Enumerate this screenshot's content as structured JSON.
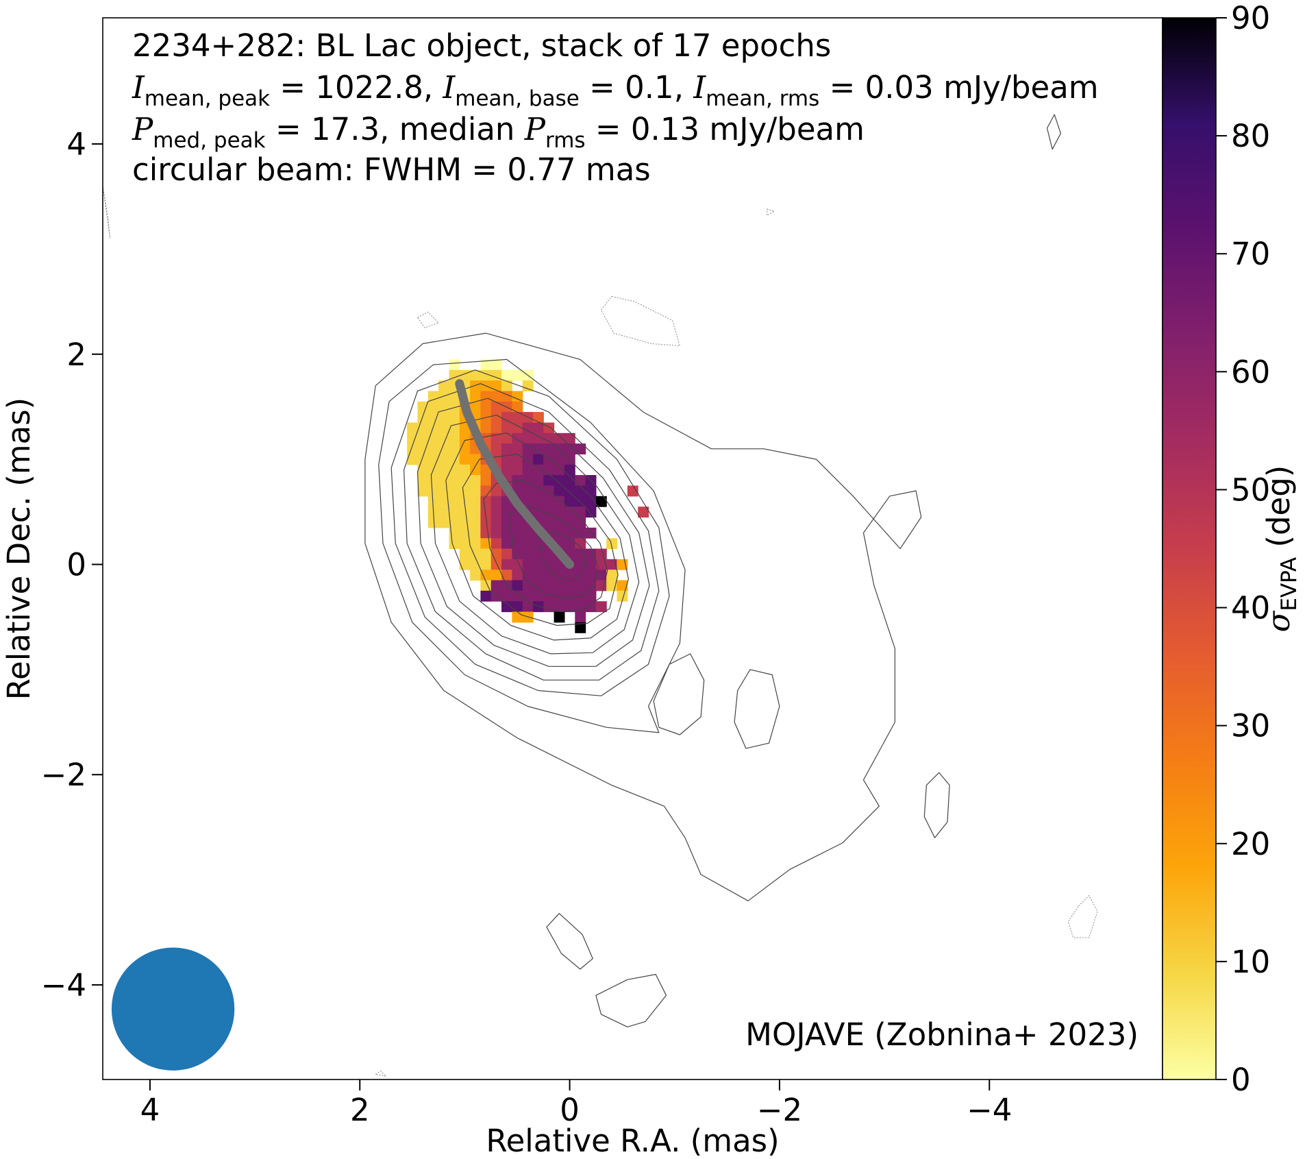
{
  "chart_data": {
    "type": "heatmap",
    "title_lines": {
      "line1": "2234+282: BL Lac object, stack of 17 epochs",
      "line2": {
        "sym_i": "I",
        "sub_peak": "mean, peak",
        "val_peak": " = 1022.8, ",
        "sub_base": "mean, base",
        "val_base": " = 0.1, ",
        "sub_rms": "mean, rms",
        "val_rms": " = 0.03 mJy/beam"
      },
      "line3": {
        "sym_p": "P",
        "sub_peak": "med, peak",
        "val_peak": " = 17.3, median ",
        "sub_rms": "rms",
        "val_rms": " = 0.13 mJy/beam"
      },
      "line4": "circular beam: FWHM = 0.77 mas"
    },
    "credit": "MOJAVE (Zobnina+ 2023)",
    "xlabel": "Relative R.A. (mas)",
    "ylabel": "Relative Dec. (mas)",
    "xlim": [
      4.45,
      -5.65
    ],
    "ylim": [
      -4.9,
      5.2
    ],
    "x_inverted": true,
    "xticks": [
      4,
      2,
      0,
      -2,
      -4
    ],
    "xtick_labels": [
      "4",
      "2",
      "0",
      "−2",
      "−4"
    ],
    "yticks": [
      4,
      2,
      0,
      -2,
      -4
    ],
    "ytick_labels": [
      "4",
      "2",
      "0",
      "−2",
      "−4"
    ],
    "colorbar": {
      "label_symbol": "σ",
      "label_sub": "EVPA",
      "label_unit": " (deg)",
      "range": [
        0,
        90
      ],
      "ticks": [
        0,
        10,
        20,
        30,
        40,
        50,
        60,
        70,
        80,
        90
      ],
      "colormap": "inferno_r",
      "colors": [
        "#fcffa4",
        "#f6d645",
        "#fca50a",
        "#f57d15",
        "#e55c30",
        "#c73e4c",
        "#a52c60",
        "#82206c",
        "#5c126e",
        "#35106c",
        "#000004"
      ]
    },
    "beam": {
      "x": 3.78,
      "y": -4.23,
      "fwhm_mas": 0.77,
      "color": "#1f77b4"
    },
    "ridge_line": {
      "color": "#707070",
      "points": [
        [
          1.05,
          1.72
        ],
        [
          0.98,
          1.45
        ],
        [
          0.85,
          1.15
        ],
        [
          0.68,
          0.85
        ],
        [
          0.5,
          0.58
        ],
        [
          0.3,
          0.34
        ],
        [
          0.13,
          0.15
        ],
        [
          0.0,
          0.0
        ]
      ]
    },
    "contours": [
      {
        "level": "outer",
        "points": [
          [
            1.95,
            1.0
          ],
          [
            1.95,
            0.2
          ],
          [
            1.7,
            -0.55
          ],
          [
            1.2,
            -1.2
          ],
          [
            0.5,
            -1.65
          ],
          [
            -0.4,
            -2.1
          ],
          [
            -0.9,
            -2.3
          ],
          [
            -1.1,
            -2.6
          ],
          [
            -1.25,
            -2.95
          ],
          [
            -1.7,
            -3.2
          ],
          [
            -2.1,
            -2.9
          ],
          [
            -2.6,
            -2.65
          ],
          [
            -2.95,
            -2.3
          ],
          [
            -2.8,
            -2.05
          ],
          [
            -3.1,
            -1.5
          ],
          [
            -3.1,
            -0.8
          ],
          [
            -2.9,
            -0.2
          ],
          [
            -2.8,
            0.3
          ],
          [
            -3.05,
            0.65
          ],
          [
            -3.3,
            0.7
          ],
          [
            -3.35,
            0.45
          ],
          [
            -3.15,
            0.15
          ],
          [
            -2.7,
            0.65
          ],
          [
            -2.35,
            1.0
          ],
          [
            -1.85,
            1.1
          ],
          [
            -1.35,
            1.1
          ],
          [
            -0.7,
            1.45
          ],
          [
            -0.1,
            1.95
          ],
          [
            0.8,
            2.2
          ],
          [
            1.4,
            2.1
          ],
          [
            1.85,
            1.7
          ]
        ]
      },
      {
        "level": "c2",
        "points": [
          [
            1.82,
            0.95
          ],
          [
            1.78,
            0.2
          ],
          [
            1.5,
            -0.55
          ],
          [
            1.0,
            -1.05
          ],
          [
            0.4,
            -1.35
          ],
          [
            -0.35,
            -1.55
          ],
          [
            -0.85,
            -1.6
          ],
          [
            -0.75,
            -1.35
          ],
          [
            -1.05,
            -0.75
          ],
          [
            -1.1,
            -0.05
          ],
          [
            -0.8,
            0.7
          ],
          [
            -0.2,
            1.35
          ],
          [
            0.6,
            1.95
          ],
          [
            1.3,
            1.9
          ],
          [
            1.72,
            1.55
          ]
        ]
      },
      {
        "level": "c3",
        "points": [
          [
            1.7,
            0.92
          ],
          [
            1.66,
            0.2
          ],
          [
            1.38,
            -0.5
          ],
          [
            0.9,
            -0.95
          ],
          [
            0.3,
            -1.2
          ],
          [
            -0.3,
            -1.25
          ],
          [
            -0.75,
            -0.95
          ],
          [
            -0.95,
            -0.3
          ],
          [
            -0.85,
            0.35
          ],
          [
            -0.45,
            1.0
          ],
          [
            0.2,
            1.6
          ],
          [
            0.9,
            1.85
          ],
          [
            1.45,
            1.65
          ]
        ]
      },
      {
        "level": "c4",
        "points": [
          [
            1.58,
            0.9
          ],
          [
            1.55,
            0.2
          ],
          [
            1.28,
            -0.45
          ],
          [
            0.8,
            -0.85
          ],
          [
            0.25,
            -1.1
          ],
          [
            -0.28,
            -1.1
          ],
          [
            -0.68,
            -0.82
          ],
          [
            -0.85,
            -0.25
          ],
          [
            -0.75,
            0.32
          ],
          [
            -0.38,
            0.9
          ],
          [
            0.2,
            1.45
          ],
          [
            0.85,
            1.72
          ],
          [
            1.35,
            1.55
          ]
        ]
      },
      {
        "level": "c5",
        "points": [
          [
            1.45,
            0.88
          ],
          [
            1.42,
            0.2
          ],
          [
            1.17,
            -0.4
          ],
          [
            0.72,
            -0.77
          ],
          [
            0.2,
            -0.97
          ],
          [
            -0.25,
            -0.97
          ],
          [
            -0.6,
            -0.72
          ],
          [
            -0.76,
            -0.2
          ],
          [
            -0.66,
            0.3
          ],
          [
            -0.32,
            0.82
          ],
          [
            0.18,
            1.3
          ],
          [
            0.78,
            1.58
          ],
          [
            1.25,
            1.45
          ]
        ]
      },
      {
        "level": "c6",
        "points": [
          [
            1.32,
            0.85
          ],
          [
            1.28,
            0.2
          ],
          [
            1.05,
            -0.35
          ],
          [
            0.65,
            -0.68
          ],
          [
            0.18,
            -0.85
          ],
          [
            -0.22,
            -0.84
          ],
          [
            -0.52,
            -0.62
          ],
          [
            -0.66,
            -0.17
          ],
          [
            -0.57,
            0.28
          ],
          [
            -0.26,
            0.74
          ],
          [
            0.16,
            1.15
          ],
          [
            0.7,
            1.42
          ],
          [
            1.13,
            1.32
          ]
        ]
      },
      {
        "level": "c7",
        "points": [
          [
            1.18,
            0.8
          ],
          [
            1.12,
            0.2
          ],
          [
            0.92,
            -0.3
          ],
          [
            0.56,
            -0.58
          ],
          [
            0.15,
            -0.72
          ],
          [
            -0.2,
            -0.7
          ],
          [
            -0.45,
            -0.52
          ],
          [
            -0.56,
            -0.14
          ],
          [
            -0.48,
            0.25
          ],
          [
            -0.2,
            0.65
          ],
          [
            0.15,
            0.98
          ],
          [
            0.6,
            1.25
          ],
          [
            1.0,
            1.18
          ]
        ]
      },
      {
        "level": "c8",
        "points": [
          [
            1.02,
            0.73
          ],
          [
            0.95,
            0.18
          ],
          [
            0.76,
            -0.25
          ],
          [
            0.46,
            -0.48
          ],
          [
            0.12,
            -0.58
          ],
          [
            -0.17,
            -0.56
          ],
          [
            -0.38,
            -0.42
          ],
          [
            -0.46,
            -0.1
          ],
          [
            -0.39,
            0.22
          ],
          [
            -0.15,
            0.55
          ],
          [
            0.15,
            0.82
          ],
          [
            0.5,
            1.05
          ],
          [
            0.86,
            1.0
          ]
        ]
      },
      {
        "level": "c9",
        "points": [
          [
            0.82,
            0.62
          ],
          [
            0.76,
            0.15
          ],
          [
            0.6,
            -0.2
          ],
          [
            0.36,
            -0.38
          ],
          [
            0.09,
            -0.45
          ],
          [
            -0.14,
            -0.43
          ],
          [
            -0.3,
            -0.31
          ],
          [
            -0.36,
            -0.06
          ],
          [
            -0.29,
            0.2
          ],
          [
            -0.1,
            0.45
          ],
          [
            0.15,
            0.66
          ],
          [
            0.45,
            0.8
          ],
          [
            0.7,
            0.77
          ]
        ]
      },
      {
        "level": "c10",
        "points": [
          [
            0.58,
            0.48
          ],
          [
            0.53,
            0.1
          ],
          [
            0.41,
            -0.15
          ],
          [
            0.24,
            -0.28
          ],
          [
            0.05,
            -0.32
          ],
          [
            -0.12,
            -0.3
          ],
          [
            -0.24,
            -0.2
          ],
          [
            -0.27,
            -0.02
          ],
          [
            -0.2,
            0.17
          ],
          [
            -0.05,
            0.33
          ],
          [
            0.15,
            0.46
          ],
          [
            0.38,
            0.55
          ]
        ]
      },
      {
        "level": "c11",
        "points": [
          [
            0.3,
            0.28
          ],
          [
            0.26,
            0.05
          ],
          [
            0.17,
            -0.08
          ],
          [
            0.05,
            -0.15
          ],
          [
            -0.06,
            -0.14
          ],
          [
            -0.13,
            -0.07
          ],
          [
            -0.15,
            0.05
          ],
          [
            -0.1,
            0.17
          ],
          [
            0.02,
            0.26
          ],
          [
            0.16,
            0.31
          ]
        ]
      },
      {
        "level": "island",
        "points": [
          [
            -0.8,
            -1.3
          ],
          [
            -0.95,
            -0.95
          ],
          [
            -1.15,
            -0.85
          ],
          [
            -1.28,
            -1.1
          ],
          [
            -1.25,
            -1.45
          ],
          [
            -1.05,
            -1.62
          ],
          [
            -0.85,
            -1.55
          ]
        ]
      },
      {
        "level": "island",
        "points": [
          [
            -1.6,
            -1.2
          ],
          [
            -1.72,
            -1.0
          ],
          [
            -1.93,
            -1.05
          ],
          [
            -2.0,
            -1.35
          ],
          [
            -1.9,
            -1.7
          ],
          [
            -1.68,
            -1.75
          ],
          [
            -1.57,
            -1.5
          ]
        ]
      },
      {
        "level": "island",
        "points": [
          [
            -3.4,
            -2.1
          ],
          [
            -3.52,
            -1.98
          ],
          [
            -3.62,
            -2.1
          ],
          [
            -3.6,
            -2.45
          ],
          [
            -3.48,
            -2.6
          ],
          [
            -3.38,
            -2.4
          ]
        ]
      },
      {
        "level": "island",
        "points": [
          [
            0.22,
            -3.45
          ],
          [
            0.1,
            -3.32
          ],
          [
            -0.12,
            -3.52
          ],
          [
            -0.22,
            -3.75
          ],
          [
            -0.1,
            -3.85
          ],
          [
            0.08,
            -3.7
          ]
        ]
      },
      {
        "level": "island",
        "points": [
          [
            -0.25,
            -4.1
          ],
          [
            -0.55,
            -3.95
          ],
          [
            -0.82,
            -3.9
          ],
          [
            -0.92,
            -4.1
          ],
          [
            -0.72,
            -4.35
          ],
          [
            -0.55,
            -4.4
          ],
          [
            -0.3,
            -4.28
          ]
        ]
      },
      {
        "level": "island",
        "points": [
          [
            -4.62,
            4.28
          ],
          [
            -4.55,
            4.15
          ],
          [
            -4.6,
            3.95
          ],
          [
            -4.68,
            4.1
          ]
        ]
      }
    ],
    "negative_contours": [
      {
        "points": [
          [
            -0.4,
            2.55
          ],
          [
            -0.62,
            2.5
          ],
          [
            -0.98,
            2.32
          ],
          [
            -1.05,
            2.08
          ],
          [
            -0.78,
            2.1
          ],
          [
            -0.42,
            2.2
          ],
          [
            -0.3,
            2.42
          ]
        ]
      },
      {
        "points": [
          [
            1.45,
            2.35
          ],
          [
            1.35,
            2.4
          ],
          [
            1.25,
            2.3
          ],
          [
            1.38,
            2.25
          ]
        ]
      },
      {
        "points": [
          [
            -4.85,
            -3.25
          ],
          [
            -4.95,
            -3.15
          ],
          [
            -5.03,
            -3.3
          ],
          [
            -4.95,
            -3.55
          ],
          [
            -4.8,
            -3.55
          ],
          [
            -4.75,
            -3.4
          ]
        ]
      },
      {
        "points": [
          [
            -1.88,
            3.38
          ],
          [
            -1.95,
            3.36
          ],
          [
            -1.88,
            3.32
          ]
        ]
      },
      {
        "points": [
          [
            1.85,
            -4.85
          ],
          [
            1.8,
            -4.82
          ],
          [
            1.75,
            -4.87
          ]
        ]
      },
      {
        "points": [
          [
            4.45,
            3.6
          ],
          [
            4.4,
            3.3
          ],
          [
            4.38,
            3.1
          ]
        ]
      }
    ],
    "evpa_map": {
      "grid_step_mas": 0.1,
      "x_first": 1.7,
      "y_first": 1.9,
      "rows": [
        "......0..00.....................",
        "......11111000..................",
        ".....1112221.1..................",
        "....111123332...................",
        "...1111223443...................",
        "...111122345554.................",
        "..11111223455665................",
        "..1111123455666666..............",
        "..11111234566777777.............",
        "..1111122456678777..............",
        "...111112356677778..............",
        "...11111135677788878............",
        "...11111145677778888...5........",
        "....11111567777778889...........",
        "....1111156777777778....5.......",
        "....111115677777777.............",
        "......11156777777777............",
        "......1112577777776..1..........",
        ".......11145777777776...........",
        ".......1114667777777662.........",
        "........12246777777771..........",
        ".........17787777777612.........",
        ".........87777777777..1.........",
        "...........8878777776...........",
        "............22..9.7.............",
        "..................9............."
      ]
    }
  }
}
